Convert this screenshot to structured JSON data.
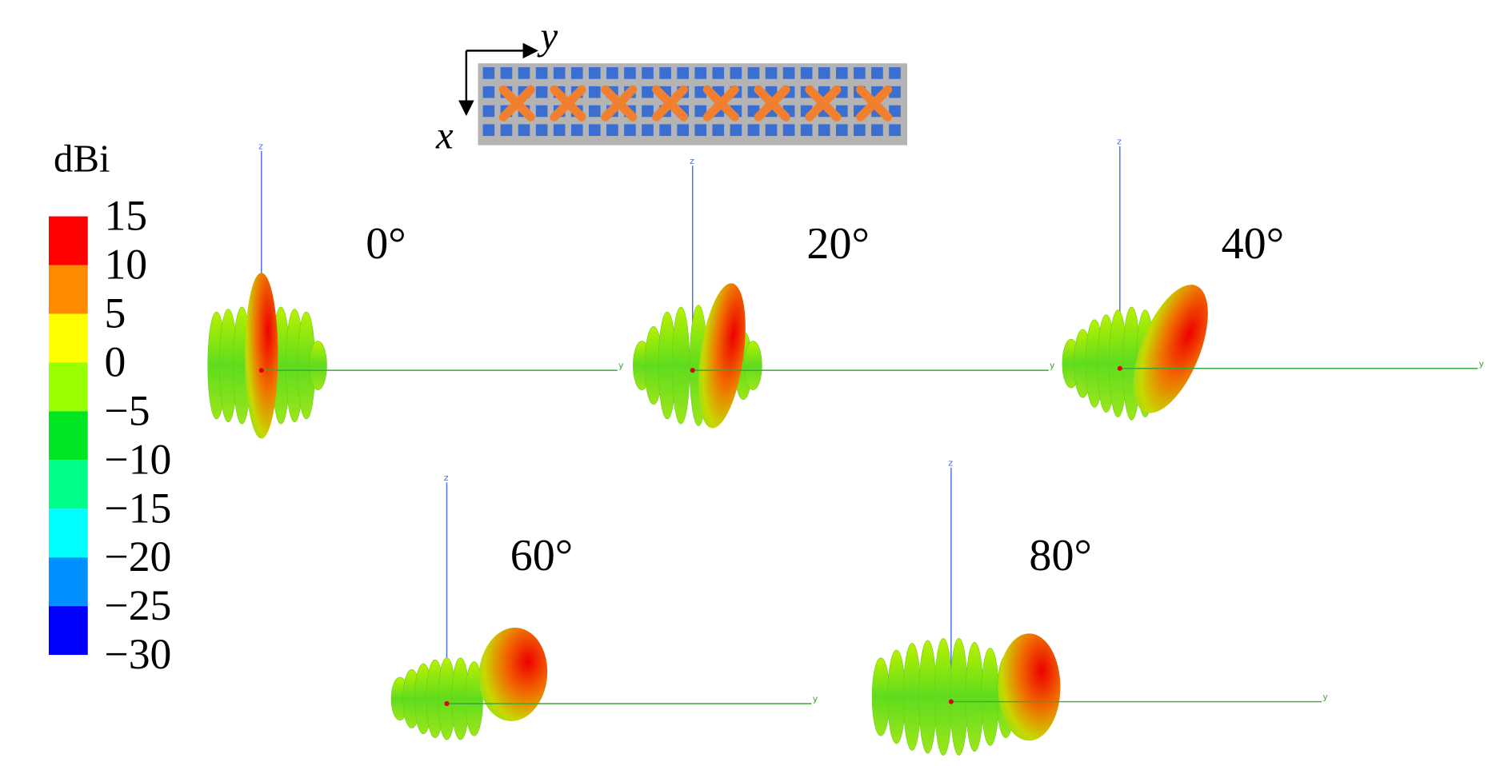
{
  "legend": {
    "title": "dBi",
    "ticks": [
      "15",
      "10",
      "5",
      "0",
      "−5",
      "−10",
      "−15",
      "−20",
      "−25",
      "−30"
    ],
    "colors": [
      "#ff0000",
      "#ff8a00",
      "#ffff00",
      "#99ff00",
      "#00e622",
      "#00ff88",
      "#00ffff",
      "#0090ff",
      "#0000ff"
    ]
  },
  "array_inset": {
    "x_axis": "x",
    "y_axis": "y"
  },
  "patterns": [
    {
      "label": "0°",
      "z_axis": "z",
      "y_axis": "y"
    },
    {
      "label": "20°",
      "z_axis": "z",
      "y_axis": "y"
    },
    {
      "label": "40°",
      "z_axis": "z",
      "y_axis": "y"
    },
    {
      "label": "60°",
      "z_axis": "z",
      "y_axis": "y"
    },
    {
      "label": "80°",
      "z_axis": "z",
      "y_axis": "y"
    }
  ]
}
